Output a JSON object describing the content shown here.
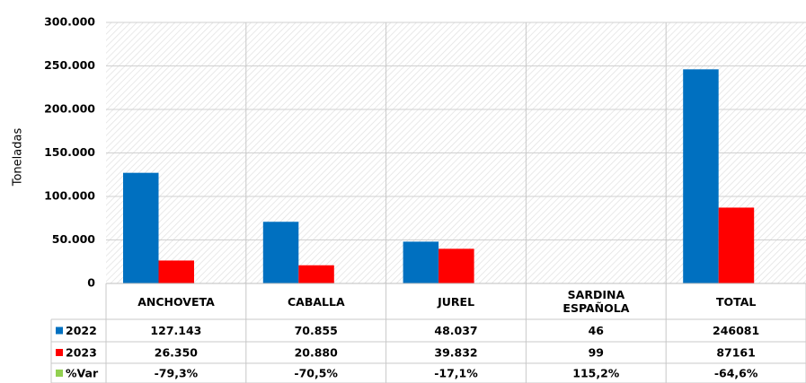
{
  "chart_data": {
    "type": "bar",
    "y_label": "Toneladas",
    "categories": [
      "ANCHOVETA",
      "CABALLA",
      "JUREL",
      "SARDINA ESPAÑOLA",
      "TOTAL"
    ],
    "series": [
      {
        "name": "2022",
        "color": "#0070c0",
        "values": [
          127143,
          70855,
          48037,
          46,
          246081
        ],
        "value_labels": [
          "127.143",
          "70.855",
          "48.037",
          "46",
          "246081"
        ]
      },
      {
        "name": "2023",
        "color": "#ff0000",
        "values": [
          26350,
          20880,
          39832,
          99,
          87161
        ],
        "value_labels": [
          "26.350",
          "20.880",
          "39.832",
          "99",
          "87161"
        ]
      },
      {
        "name": "%Var",
        "color": "#92d050",
        "values": [
          -79.3,
          -70.5,
          -17.1,
          115.2,
          -64.6
        ],
        "value_labels": [
          "-79,3%",
          "-70,5%",
          "-17,1%",
          "115,2%",
          "-64,6%"
        ]
      }
    ],
    "ylim": [
      0,
      300000
    ],
    "yticks": [
      0,
      {
        "value": 50000,
        "label": "50.000"
      },
      {
        "value": 100000,
        "label": "100.000"
      },
      {
        "value": 150000,
        "label": "150.000"
      },
      {
        "value": 200000,
        "label": "200.000"
      },
      {
        "value": 250000,
        "label": "250.000"
      },
      {
        "value": 300000,
        "label": "300.000"
      }
    ],
    "grid": true
  }
}
